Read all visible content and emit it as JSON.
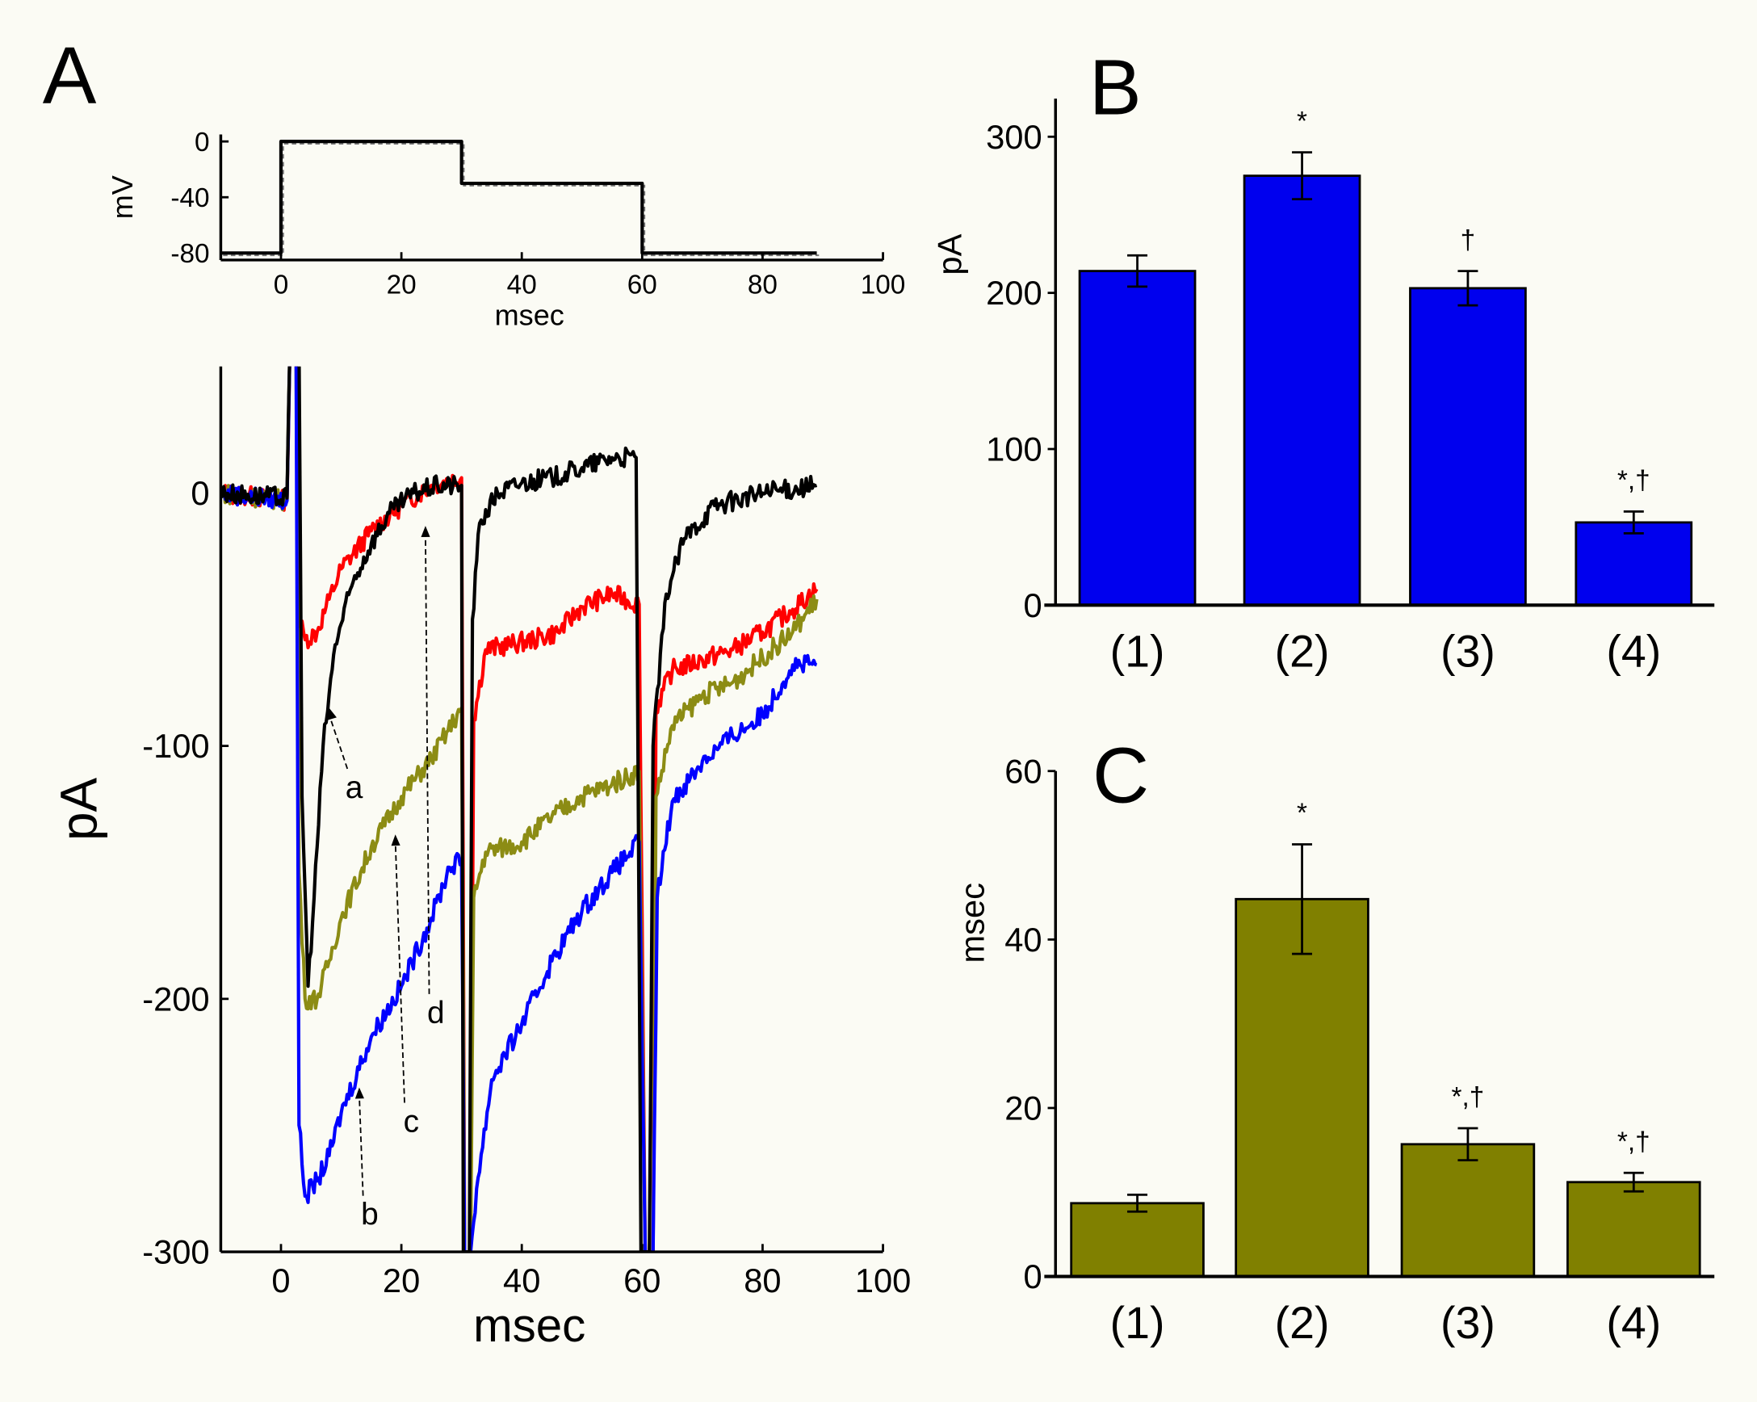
{
  "panel_labels": {
    "a": "A",
    "b": "B",
    "c": "C"
  },
  "colors": {
    "black": "#000000",
    "red": "#ff0000",
    "olive": "#8c8c14",
    "blue": "#0000ff",
    "bar_b": "#0000ee",
    "bar_c": "#808000"
  },
  "chart_data": [
    {
      "id": "A-protocol",
      "type": "line",
      "xlabel": "msec",
      "ylabel": "mV",
      "xlim": [
        -10,
        100
      ],
      "ylim": [
        -85,
        5
      ],
      "xticks": [
        0,
        20,
        40,
        60,
        80,
        100
      ],
      "yticks": [
        0,
        -40,
        -80
      ],
      "series": [
        {
          "name": "voltage step",
          "color": "#000000",
          "points": [
            [
              -10,
              -80
            ],
            [
              0,
              -80
            ],
            [
              0,
              0
            ],
            [
              30,
              0
            ],
            [
              30,
              -30
            ],
            [
              60,
              -30
            ],
            [
              60,
              -80
            ],
            [
              89,
              -80
            ]
          ]
        }
      ]
    },
    {
      "id": "A-currents",
      "type": "line",
      "xlabel": "msec",
      "ylabel": "pA",
      "xlim": [
        -10,
        100
      ],
      "ylim": [
        -300,
        50
      ],
      "xticks": [
        0,
        20,
        40,
        60,
        80,
        100
      ],
      "yticks": [
        0,
        -100,
        -200,
        -300
      ],
      "annotations": [
        {
          "text": "a",
          "target": [
            8,
            -85
          ]
        },
        {
          "text": "b",
          "target": [
            13,
            -235
          ]
        },
        {
          "text": "c",
          "target": [
            19,
            -135
          ]
        },
        {
          "text": "d",
          "target": [
            24,
            -13
          ]
        }
      ],
      "series": [
        {
          "name": "red",
          "color": "#ff0000",
          "points": [
            [
              -10,
              0
            ],
            [
              1,
              -3
            ],
            [
              1.5,
              60
            ],
            [
              2.5,
              60
            ],
            [
              3,
              -50
            ],
            [
              4,
              -58
            ],
            [
              6,
              -55
            ],
            [
              8,
              -42
            ],
            [
              10,
              -30
            ],
            [
              15,
              -15
            ],
            [
              20,
              -5
            ],
            [
              25,
              3
            ],
            [
              30,
              6
            ],
            [
              30.5,
              -300
            ],
            [
              31.5,
              -300
            ],
            [
              32,
              -90
            ],
            [
              34,
              -62
            ],
            [
              38,
              -60
            ],
            [
              42,
              -58
            ],
            [
              46,
              -55
            ],
            [
              50,
              -45
            ],
            [
              55,
              -40
            ],
            [
              59.5,
              -44
            ],
            [
              60.5,
              -300
            ],
            [
              61.8,
              -300
            ],
            [
              62.3,
              -85
            ],
            [
              65,
              -70
            ],
            [
              70,
              -66
            ],
            [
              75,
              -62
            ],
            [
              80,
              -55
            ],
            [
              85,
              -46
            ],
            [
              89,
              -38
            ]
          ]
        },
        {
          "name": "olive",
          "color": "#8c8c14",
          "points": [
            [
              -10,
              0
            ],
            [
              1,
              -3
            ],
            [
              1.5,
              60
            ],
            [
              2.5,
              60
            ],
            [
              3,
              -150
            ],
            [
              4,
              -200
            ],
            [
              6,
              -200
            ],
            [
              8,
              -185
            ],
            [
              10,
              -168
            ],
            [
              15,
              -140
            ],
            [
              20,
              -120
            ],
            [
              25,
              -105
            ],
            [
              30,
              -85
            ],
            [
              30.5,
              -300
            ],
            [
              31.5,
              -300
            ],
            [
              32,
              -160
            ],
            [
              34,
              -142
            ],
            [
              40,
              -138
            ],
            [
              45,
              -128
            ],
            [
              50,
              -120
            ],
            [
              55,
              -115
            ],
            [
              59.5,
              -110
            ],
            [
              60.5,
              -300
            ],
            [
              61.8,
              -300
            ],
            [
              62.3,
              -120
            ],
            [
              65,
              -92
            ],
            [
              70,
              -80
            ],
            [
              75,
              -75
            ],
            [
              80,
              -65
            ],
            [
              85,
              -55
            ],
            [
              89,
              -42
            ]
          ]
        },
        {
          "name": "blue",
          "color": "#0000ff",
          "points": [
            [
              -10,
              0
            ],
            [
              1,
              -3
            ],
            [
              1.5,
              60
            ],
            [
              2.5,
              60
            ],
            [
              3,
              -250
            ],
            [
              4,
              -278
            ],
            [
              6,
              -272
            ],
            [
              8,
              -262
            ],
            [
              10,
              -245
            ],
            [
              15,
              -215
            ],
            [
              20,
              -195
            ],
            [
              25,
              -168
            ],
            [
              28,
              -148
            ],
            [
              30,
              -145
            ],
            [
              30.5,
              -300
            ],
            [
              31.5,
              -300
            ],
            [
              32.5,
              -275
            ],
            [
              35,
              -232
            ],
            [
              40,
              -210
            ],
            [
              45,
              -185
            ],
            [
              50,
              -165
            ],
            [
              55,
              -150
            ],
            [
              59.5,
              -138
            ],
            [
              60.5,
              -300
            ],
            [
              61.8,
              -300
            ],
            [
              62.5,
              -160
            ],
            [
              65,
              -122
            ],
            [
              70,
              -106
            ],
            [
              75,
              -96
            ],
            [
              80,
              -88
            ],
            [
              85,
              -68
            ],
            [
              89,
              -68
            ]
          ]
        },
        {
          "name": "black",
          "color": "#000000",
          "points": [
            [
              -10,
              0
            ],
            [
              1,
              -2
            ],
            [
              1.5,
              60
            ],
            [
              3,
              60
            ],
            [
              3.5,
              -120
            ],
            [
              4.5,
              -195
            ],
            [
              5.5,
              -160
            ],
            [
              7,
              -100
            ],
            [
              9,
              -60
            ],
            [
              12,
              -35
            ],
            [
              15,
              -20
            ],
            [
              18,
              -8
            ],
            [
              22,
              0
            ],
            [
              26,
              3
            ],
            [
              30,
              3
            ],
            [
              30.3,
              -300
            ],
            [
              31.3,
              -300
            ],
            [
              31.8,
              -50
            ],
            [
              33,
              -12
            ],
            [
              36,
              0
            ],
            [
              40,
              4
            ],
            [
              45,
              6
            ],
            [
              50,
              10
            ],
            [
              55,
              14
            ],
            [
              59,
              14
            ],
            [
              59.8,
              -300
            ],
            [
              61.2,
              -300
            ],
            [
              61.8,
              -100
            ],
            [
              64,
              -40
            ],
            [
              67,
              -18
            ],
            [
              72,
              -5
            ],
            [
              80,
              0
            ],
            [
              89,
              3
            ]
          ]
        }
      ]
    },
    {
      "id": "B",
      "type": "bar",
      "ylabel": "pA",
      "ylim": [
        0,
        320
      ],
      "yticks": [
        0,
        100,
        200,
        300
      ],
      "categories": [
        "(1)",
        "(2)",
        "(3)",
        "(4)"
      ],
      "values": [
        214,
        275,
        203,
        53
      ],
      "errors": [
        10,
        15,
        11,
        7
      ],
      "significance": [
        "",
        "*",
        "†",
        "*,†"
      ],
      "color": "#0000ee"
    },
    {
      "id": "C",
      "type": "bar",
      "ylabel": "msec",
      "ylim": [
        0,
        60
      ],
      "yticks": [
        0,
        20,
        40,
        60
      ],
      "categories": [
        "(1)",
        "(2)",
        "(3)",
        "(4)"
      ],
      "values": [
        8.7,
        44.8,
        15.7,
        11.2
      ],
      "errors": [
        1.0,
        6.5,
        1.9,
        1.1
      ],
      "significance": [
        "",
        "*",
        "*,†",
        "*,†"
      ],
      "color": "#808000"
    }
  ]
}
